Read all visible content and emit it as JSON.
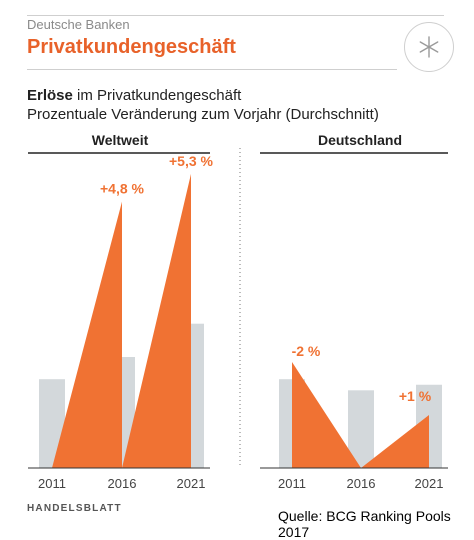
{
  "header": {
    "kicker": "Deutsche Banken",
    "headline": "Privatkundengeschäft",
    "logo_icon": "asterisk-icon"
  },
  "subtitle": {
    "bold": "Erlöse",
    "rest": " im Privatkundengeschäft",
    "line2": "Prozentuale Veränderung zum Vorjahr (Durchschnitt)"
  },
  "footer": {
    "brand": "HANDELSBLATT",
    "source": "Quelle: BCG Ranking Pools 2017"
  },
  "colors": {
    "accent": "#f07233",
    "bar": "#d3d8db",
    "headline": "#e8622a"
  },
  "chart_data": [
    {
      "type": "bar",
      "title": "Weltweit",
      "x": [
        "2011",
        "2016",
        "2021"
      ],
      "values": [
        0.0,
        4.8,
        5.3
      ],
      "data_labels": [
        "",
        "+4,8 %",
        "+5,3 %"
      ],
      "ylim": [
        0,
        5.3
      ],
      "background_bars": [
        1.6,
        2.0,
        2.6
      ]
    },
    {
      "type": "bar",
      "title": "Deutschland",
      "x": [
        "2011",
        "2016",
        "2021"
      ],
      "values": [
        -2,
        0.0,
        1
      ],
      "data_labels": [
        "-2 %",
        "",
        "+1 %"
      ],
      "ylim": [
        0,
        2
      ],
      "background_bars": [
        1.6,
        1.4,
        1.5
      ]
    }
  ]
}
